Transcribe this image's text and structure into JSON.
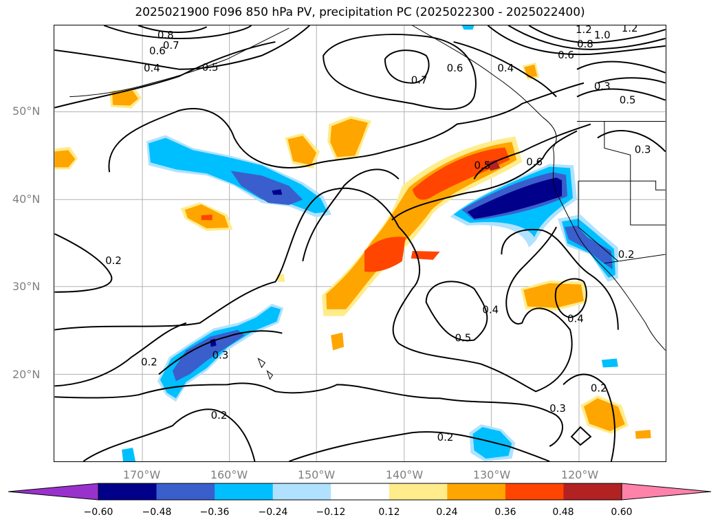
{
  "title": "2025021900 F096 850 hPa PV, precipitation PC (2025022300 - 2025022400)",
  "lat_labels": [
    "50°N",
    "40°N",
    "30°N",
    "20°N"
  ],
  "lon_labels": [
    "170°W",
    "160°W",
    "150°W",
    "140°W",
    "130°W",
    "120°W"
  ],
  "colorbar": {
    "ticks": [
      "−0.60",
      "−0.48",
      "−0.36",
      "−0.24",
      "−0.12",
      "0.12",
      "0.24",
      "0.36",
      "0.48",
      "0.60"
    ],
    "colors": [
      "#9932cc",
      "#00008b",
      "#3a5fcd",
      "#00bfff",
      "#b0e2ff",
      "#ffffff",
      "#ffec8b",
      "#ffa500",
      "#ff4500",
      "#b22222",
      "#ff82ab"
    ]
  },
  "contour_labels": [
    "1.2",
    "1.0",
    "1.2",
    "0.8",
    "0.8",
    "0.6",
    "0.7",
    "0.6",
    "0.4",
    "0.5",
    "0.7",
    "0.6",
    "0.4",
    "0.3",
    "0.5",
    "0.5",
    "0.6",
    "0.3",
    "0.2",
    "0.2",
    "0.3",
    "0.2",
    "0.4",
    "0.5",
    "0.4",
    "0.3",
    "0.2",
    "0.2",
    "0.2"
  ],
  "map_style": {
    "contour_color": "#000000",
    "coastline_color": "#000000",
    "grid_color": "#b0b0b0"
  }
}
